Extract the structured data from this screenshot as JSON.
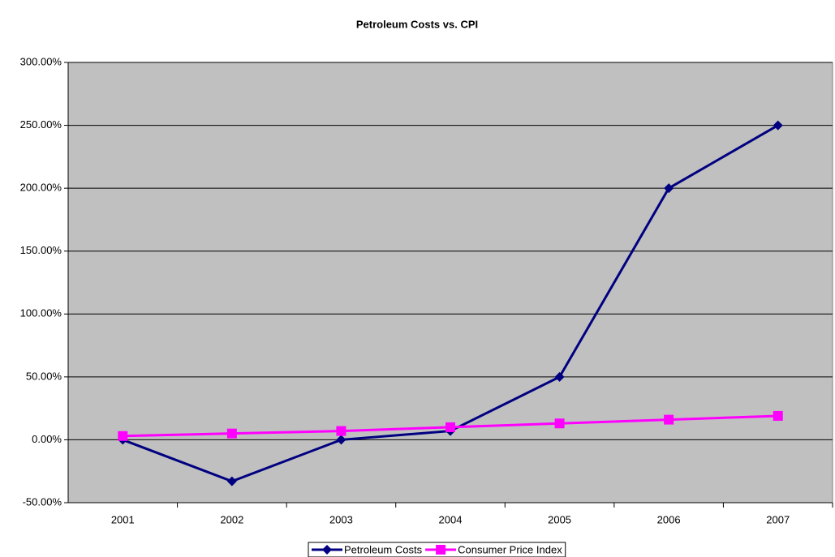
{
  "chart_data": {
    "type": "line",
    "title": "Petroleum Costs vs. CPI",
    "categories": [
      "2001",
      "2002",
      "2003",
      "2004",
      "2005",
      "2006",
      "2007"
    ],
    "series": [
      {
        "name": "Petroleum Costs",
        "color": "#000080",
        "marker": "diamond",
        "values": [
          0,
          -33,
          0,
          7,
          50,
          200,
          250
        ]
      },
      {
        "name": "Consumer Price Index",
        "color": "#ff00ff",
        "marker": "square",
        "values": [
          3,
          5,
          7,
          10,
          13,
          16,
          19
        ]
      }
    ],
    "ylim": [
      -50,
      300
    ],
    "yticks": [
      {
        "value": -50,
        "label": "-50.00%"
      },
      {
        "value": 0,
        "label": "0.00%"
      },
      {
        "value": 50,
        "label": "50.00%"
      },
      {
        "value": 100,
        "label": "100.00%"
      },
      {
        "value": 150,
        "label": "150.00%"
      },
      {
        "value": 200,
        "label": "200.00%"
      },
      {
        "value": 250,
        "label": "250.00%"
      },
      {
        "value": 300,
        "label": "300.00%"
      }
    ],
    "grid": true,
    "legend": "bottom"
  }
}
